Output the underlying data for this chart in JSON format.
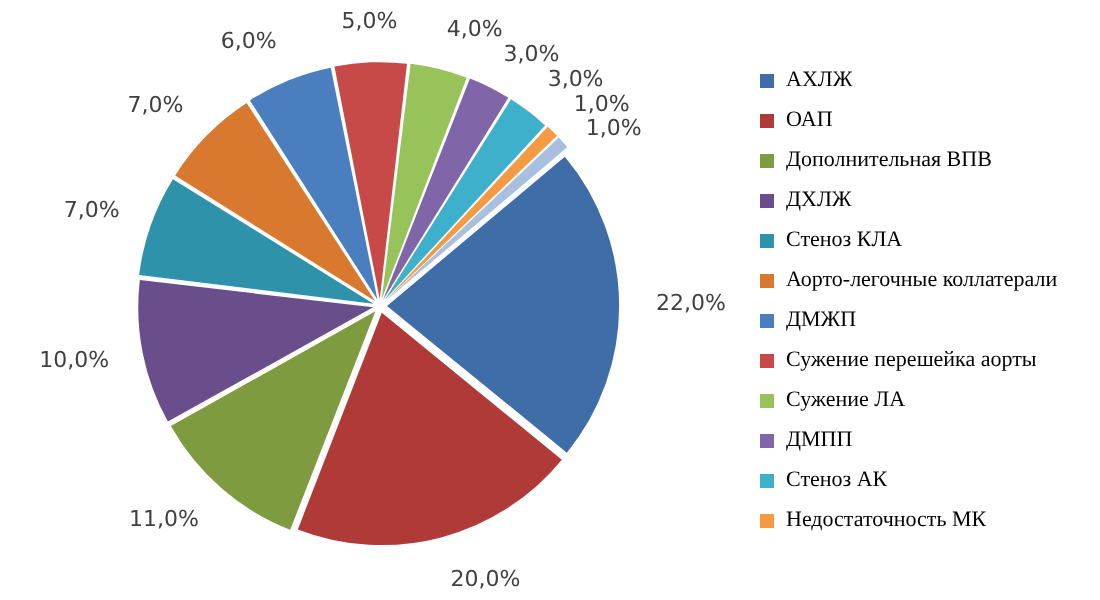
{
  "chart_data": {
    "type": "pie",
    "categories": [
      "АХЛЖ",
      "ОАП",
      "Дополнительная ВПВ",
      "ДХЛЖ",
      "Стеноз КЛА",
      "Аорто-легочные коллатерали",
      "ДМЖП",
      "Сужение перешейка аорты",
      "Сужение ЛА",
      "ДМПП",
      "Стеноз АК",
      "Недостаточность МК",
      null
    ],
    "values": [
      22,
      20,
      11,
      10,
      7,
      7,
      6,
      5,
      4,
      3,
      3,
      1,
      1
    ],
    "colors": [
      "#3f6da8",
      "#b03a37",
      "#7f9b40",
      "#6a4e8c",
      "#2f92ab",
      "#d9782f",
      "#4a7ebf",
      "#c84a48",
      "#98c25a",
      "#8065a8",
      "#3fb0cc",
      "#f59a40",
      "#a8bfe0"
    ],
    "value_labels": [
      "22,0%",
      "20,0%",
      "11,0%",
      "10,0%",
      "7,0%",
      "7,0%",
      "6,0%",
      "5,0%",
      "4,0%",
      "3,0%",
      "3,0%",
      "1,0%",
      "1,0%"
    ],
    "legend": "right"
  }
}
